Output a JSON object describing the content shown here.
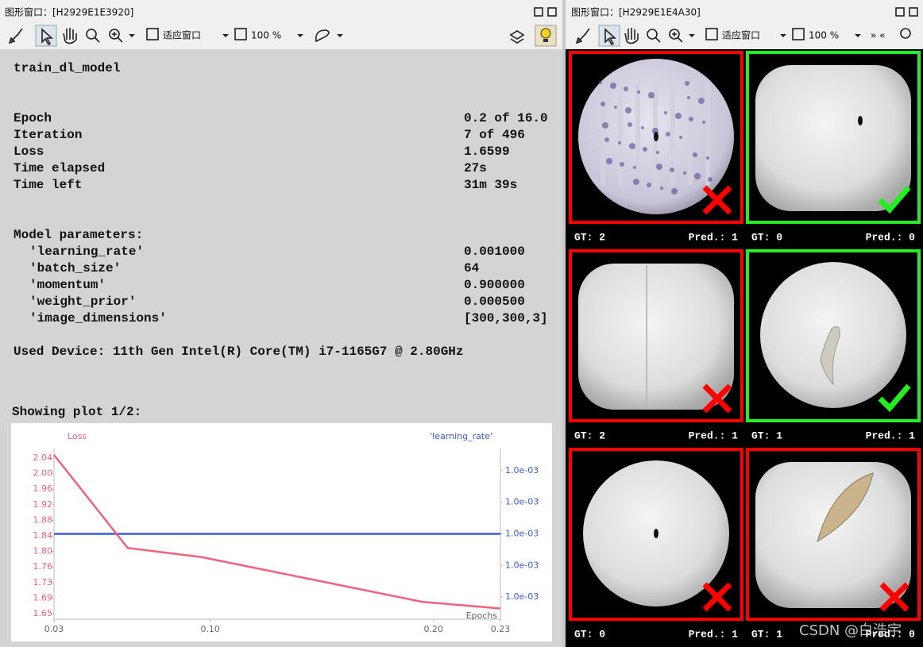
{
  "left_window": {
    "title": "图形窗口：[H2929E1E3920]",
    "toolbar": {
      "fit_label": "适应窗口",
      "zoom_label": "100 %"
    },
    "content": {
      "procedure": "train_dl_model",
      "stats": [
        {
          "label": "Epoch",
          "value": "0.2 of 16.0"
        },
        {
          "label": "Iteration",
          "value": "7 of 496"
        },
        {
          "label": "Loss",
          "value": "1.6599"
        },
        {
          "label": "Time elapsed",
          "value": "27s"
        },
        {
          "label": "Time left",
          "value": "31m 39s"
        }
      ],
      "params_heading": "Model parameters:",
      "params": [
        {
          "label": "'learning_rate'",
          "value": "0.001000"
        },
        {
          "label": "'batch_size'",
          "value": "64"
        },
        {
          "label": "'momentum'",
          "value": "0.900000"
        },
        {
          "label": "'weight_prior'",
          "value": "0.000500"
        },
        {
          "label": "'image_dimensions'",
          "value": "[300,300,3]"
        }
      ],
      "device": "Used Device: 11th Gen Intel(R) Core(TM) i7-1165G7 @ 2.80GHz",
      "plot_caption": "Showing plot 1/2:"
    }
  },
  "chart_data": {
    "type": "line",
    "x": [
      0.03,
      0.063,
      0.096,
      0.195,
      0.23
    ],
    "series": [
      {
        "name": "Loss",
        "color": "#f2607e",
        "values": [
          2.048,
          1.813,
          1.79,
          1.677,
          1.66
        ]
      },
      {
        "name": "'learning_rate'",
        "color": "#3a5bd9",
        "axis": "y2",
        "values": [
          0.001,
          0.001,
          0.001,
          0.001,
          0.001
        ]
      }
    ],
    "xlim": [
      0.03,
      0.23
    ],
    "xticks": [
      0.03,
      {
        "value": 0.1,
        "label": "0.10"
      },
      {
        "value": 0.2,
        "label": "0.20"
      },
      0.23
    ],
    "ylim": [
      1.633,
      2.064
    ],
    "yticks": [
      {
        "value": 1.647,
        "label": "1.65"
      },
      {
        "value": 1.6863,
        "label": "1.69"
      },
      {
        "value": 1.7256,
        "label": "1.73"
      },
      {
        "value": 1.7649,
        "label": "1.76"
      },
      {
        "value": 1.8042,
        "label": "1.80"
      },
      {
        "value": 1.8435,
        "label": "1.84"
      },
      {
        "value": 1.8828,
        "label": "1.88"
      },
      {
        "value": 1.9221,
        "label": "1.92"
      },
      {
        "value": 1.9614,
        "label": "1.96"
      },
      {
        "value": 2.0007,
        "label": "2.00"
      },
      2.04
    ],
    "y2lim": [
      0.000973,
      0.001027
    ],
    "y2ticks": [
      {
        "value": 0.00098,
        "label": "1.0e-03"
      },
      {
        "value": 0.00099,
        "label": "1.0e-03"
      },
      {
        "value": 0.001,
        "label": "1.0e-03"
      },
      {
        "value": 0.00101,
        "label": "1.0e-03"
      },
      {
        "value": 0.00102,
        "label": "1.0e-03"
      }
    ],
    "xlabel": "Epochs"
  },
  "right_window": {
    "title": "图形窗口：[H2929E1E4A30]",
    "toolbar": {
      "fit_label": "适应窗口",
      "zoom_label": "100 %",
      "nav": "» «"
    },
    "tiles": [
      {
        "gt": "GT: 2",
        "pred": "Pred.: 1",
        "border_color": "#ff0000",
        "icon": "cross"
      },
      {
        "gt": "GT: 0",
        "pred": "Pred.: 0",
        "border_color": "#22ee22",
        "icon": "check"
      },
      {
        "gt": "GT: 2",
        "pred": "Pred.: 1",
        "border_color": "#ff0000",
        "icon": "cross"
      },
      {
        "gt": "GT: 1",
        "pred": "Pred.: 1",
        "border_color": "#22ee22",
        "icon": "check"
      },
      {
        "gt": "GT: 0",
        "pred": "Pred.: 1",
        "border_color": "#ff0000",
        "icon": "cross"
      },
      {
        "gt": "GT: 1",
        "pred": "Pred.: 0",
        "border_color": "#ff0000",
        "icon": "cross"
      }
    ]
  },
  "watermark": "CSDN @白浩宇"
}
